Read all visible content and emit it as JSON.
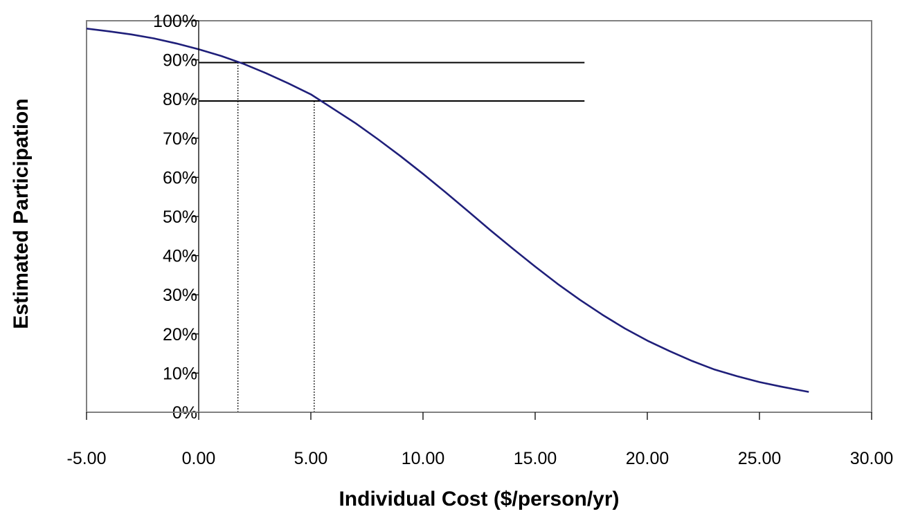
{
  "chart_data": {
    "type": "line",
    "title": "",
    "xlabel": "Individual Cost ($/person/yr)",
    "ylabel": "Estimated Participation",
    "xlim": [
      -5,
      30
    ],
    "ylim": [
      0,
      1
    ],
    "x_ticks": [
      -5,
      0,
      5,
      10,
      15,
      20,
      25,
      30
    ],
    "x_tick_labels": [
      "-5.00",
      "0.00",
      "5.00",
      "10.00",
      "15.00",
      "20.00",
      "25.00",
      "30.00"
    ],
    "y_ticks": [
      0,
      0.1,
      0.2,
      0.3,
      0.4,
      0.5,
      0.6,
      0.7,
      0.8,
      0.9,
      1.0
    ],
    "y_tick_labels": [
      "0%",
      "10%",
      "20%",
      "30%",
      "40%",
      "50%",
      "60%",
      "70%",
      "80%",
      "90%",
      "100%"
    ],
    "grid": false,
    "legend": "none",
    "series": [
      {
        "color": "#1f1f7a",
        "x": [
          -5,
          -4,
          -3,
          -2,
          -1,
          0,
          1,
          2,
          3,
          4,
          5,
          6,
          7,
          8,
          9,
          10,
          11,
          12,
          13,
          14,
          15,
          16,
          17,
          18,
          19,
          20,
          21,
          22,
          23,
          24,
          25,
          26,
          27.2
        ],
        "y": [
          0.98,
          0.973,
          0.965,
          0.955,
          0.942,
          0.927,
          0.91,
          0.89,
          0.866,
          0.84,
          0.812,
          0.775,
          0.738,
          0.697,
          0.654,
          0.609,
          0.562,
          0.514,
          0.465,
          0.418,
          0.372,
          0.328,
          0.287,
          0.249,
          0.214,
          0.183,
          0.156,
          0.131,
          0.109,
          0.092,
          0.077,
          0.065,
          0.052
        ]
      }
    ],
    "reference_lines": [
      {
        "y": 0.893,
        "x_start": 0,
        "x_end": 17.2,
        "style": "solid"
      },
      {
        "y": 0.795,
        "x_start": 0,
        "x_end": 17.2,
        "style": "solid"
      },
      {
        "x": 1.75,
        "y_start": 0,
        "y_end": 0.893,
        "style": "dotted"
      },
      {
        "x": 5.15,
        "y_start": 0,
        "y_end": 0.795,
        "style": "dotted"
      }
    ],
    "colors": {
      "line": "#1f1f7a",
      "axis": "#808080",
      "reference": "#000000",
      "text": "#000000"
    }
  }
}
